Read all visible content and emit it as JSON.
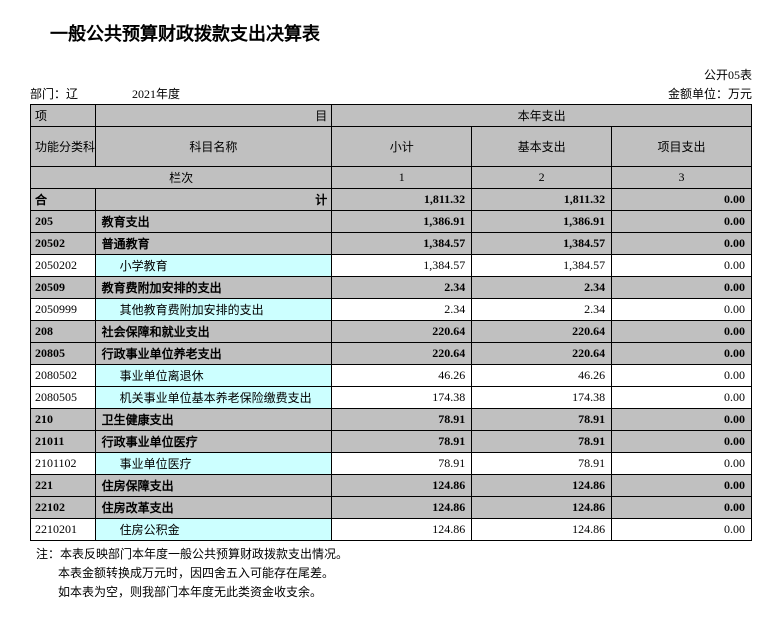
{
  "title": "一般公共预算财政拨款支出决算表",
  "meta": {
    "form_no": "公开05表",
    "dept_label": "部门：辽",
    "year": "2021年度",
    "unit": "金额单位：万元"
  },
  "headers": {
    "xiangmu": "项",
    "mu": "目",
    "benqi": "本年支出",
    "func_code": "功能分类科目编码",
    "subject_name": "科目名称",
    "subtotal": "小计",
    "basic": "基本支出",
    "project": "项目支出",
    "lanci": "栏次",
    "c1": "1",
    "c2": "2",
    "c3": "3",
    "heji_l": "合",
    "heji_r": "计"
  },
  "total": {
    "subtotal": "1,811.32",
    "basic": "1,811.32",
    "project": "0.00"
  },
  "rows": [
    {
      "code": "205",
      "name": "教育支出",
      "lvl": 0,
      "v": [
        "1,386.91",
        "1,386.91",
        "0.00"
      ]
    },
    {
      "code": "20502",
      "name": "普通教育",
      "lvl": 0,
      "v": [
        "1,384.57",
        "1,384.57",
        "0.00"
      ]
    },
    {
      "code": "2050202",
      "name": "小学教育",
      "lvl": 1,
      "v": [
        "1,384.57",
        "1,384.57",
        "0.00"
      ]
    },
    {
      "code": "20509",
      "name": "教育费附加安排的支出",
      "lvl": 0,
      "v": [
        "2.34",
        "2.34",
        "0.00"
      ]
    },
    {
      "code": "2050999",
      "name": "其他教育费附加安排的支出",
      "lvl": 1,
      "v": [
        "2.34",
        "2.34",
        "0.00"
      ]
    },
    {
      "code": "208",
      "name": "社会保障和就业支出",
      "lvl": 0,
      "v": [
        "220.64",
        "220.64",
        "0.00"
      ]
    },
    {
      "code": "20805",
      "name": "行政事业单位养老支出",
      "lvl": 0,
      "v": [
        "220.64",
        "220.64",
        "0.00"
      ]
    },
    {
      "code": "2080502",
      "name": "事业单位离退休",
      "lvl": 1,
      "v": [
        "46.26",
        "46.26",
        "0.00"
      ]
    },
    {
      "code": "2080505",
      "name": "机关事业单位基本养老保险缴费支出",
      "lvl": 1,
      "v": [
        "174.38",
        "174.38",
        "0.00"
      ]
    },
    {
      "code": "210",
      "name": "卫生健康支出",
      "lvl": 0,
      "v": [
        "78.91",
        "78.91",
        "0.00"
      ]
    },
    {
      "code": "21011",
      "name": "行政事业单位医疗",
      "lvl": 0,
      "v": [
        "78.91",
        "78.91",
        "0.00"
      ]
    },
    {
      "code": "2101102",
      "name": "事业单位医疗",
      "lvl": 1,
      "v": [
        "78.91",
        "78.91",
        "0.00"
      ]
    },
    {
      "code": "221",
      "name": "住房保障支出",
      "lvl": 0,
      "v": [
        "124.86",
        "124.86",
        "0.00"
      ]
    },
    {
      "code": "22102",
      "name": "住房改革支出",
      "lvl": 0,
      "v": [
        "124.86",
        "124.86",
        "0.00"
      ]
    },
    {
      "code": "2210201",
      "name": "住房公积金",
      "lvl": 1,
      "v": [
        "124.86",
        "124.86",
        "0.00"
      ]
    }
  ],
  "notes": {
    "n1": "注：本表反映部门本年度一般公共预算财政拨款支出情况。",
    "n2": "本表金额转换成万元时，因四舍五入可能存在尾差。",
    "n3": "如本表为空，则我部门本年度无此类资金收支余。"
  },
  "style": {
    "gray": "#c0c0c0",
    "cyan": "#ccffff",
    "white": "#ffffff",
    "border": "#000000"
  }
}
